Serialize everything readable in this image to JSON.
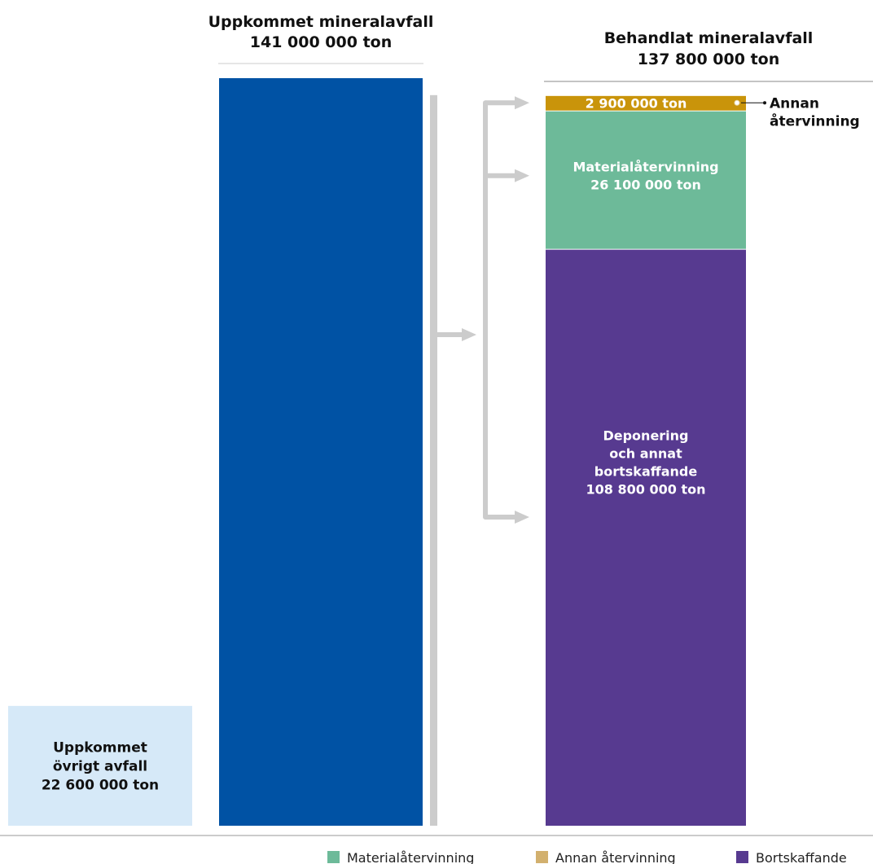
{
  "chart_data": {
    "type": "bar",
    "unit": "ton",
    "generated_mineral": {
      "title": "Uppkommet mineralavfall",
      "value": 141000000,
      "value_label": "141 000 000 ton",
      "color": "#0052a4"
    },
    "generated_other": {
      "label_lines": [
        "Uppkommet",
        "övrigt avfall",
        "22 600 000 ton"
      ],
      "value": 22600000,
      "color": "#d6e9f8"
    },
    "treated_mineral": {
      "title": "Behandlat mineralavfall",
      "value": 137800000,
      "value_label": "137 800 000 ton",
      "segments": [
        {
          "name": "Annan återvinning",
          "value": 2900000,
          "value_label": "2 900 000 ton",
          "callout_lines": [
            "Annan",
            "återvinning"
          ],
          "color": "#c9940a"
        },
        {
          "name": "Materialåtervinning",
          "value": 26100000,
          "label_lines": [
            "Materialåtervinning",
            "26 100 000 ton"
          ],
          "color": "#6dba99"
        },
        {
          "name": "Bortskaffande",
          "value": 108800000,
          "label_lines": [
            "Deponering",
            "och annat",
            "bortskaffande",
            "108 800 000 ton"
          ],
          "color": "#573a90"
        }
      ]
    },
    "legend": [
      {
        "label": "Materialåtervinning",
        "color": "#6dba99"
      },
      {
        "label": "Annan återvinning",
        "color": "#d2b06e"
      },
      {
        "label": "Bortskaffande",
        "color": "#573a90"
      }
    ]
  }
}
